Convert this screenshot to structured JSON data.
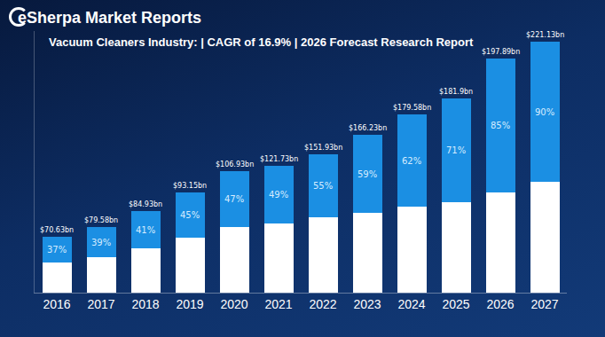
{
  "chart_data": {
    "type": "bar",
    "brand": "eSherpa Market Reports",
    "title": "Vacuum Cleaners Industry: | CAGR of 16.9% | 2026 Forecast Research Report",
    "categories": [
      "2016",
      "2017",
      "2018",
      "2019",
      "2020",
      "2021",
      "2022",
      "2023",
      "2024",
      "2025",
      "2026",
      "2027"
    ],
    "series": [
      {
        "color": "#ffffff",
        "values": [
          34,
          40,
          50,
          62,
          74,
          78,
          85,
          90,
          97,
          102,
          113,
          125
        ]
      },
      {
        "color": "#1b8fe3",
        "values": [
          29,
          34,
          42,
          51,
          63,
          65,
          71,
          88,
          104,
          117,
          151,
          158
        ],
        "segment_labels": [
          "37%",
          "39%",
          "41%",
          "45%",
          "47%",
          "49%",
          "55%",
          "59%",
          "62%",
          "71%",
          "85%",
          "90%"
        ]
      }
    ],
    "total_labels": [
      "$70.63bn",
      "$79.58bn",
      "$84.93bn",
      "$93.15bn",
      "$106.93bn",
      "$121.73bn",
      "$151.93bn",
      "$166.23bn",
      "$179.58bn",
      "$181.9bn",
      "$197.89bn",
      "$221.13bn"
    ],
    "stacked": true,
    "tick_labels": "x",
    "ylim": [
      0,
      295
    ],
    "grid": false
  }
}
